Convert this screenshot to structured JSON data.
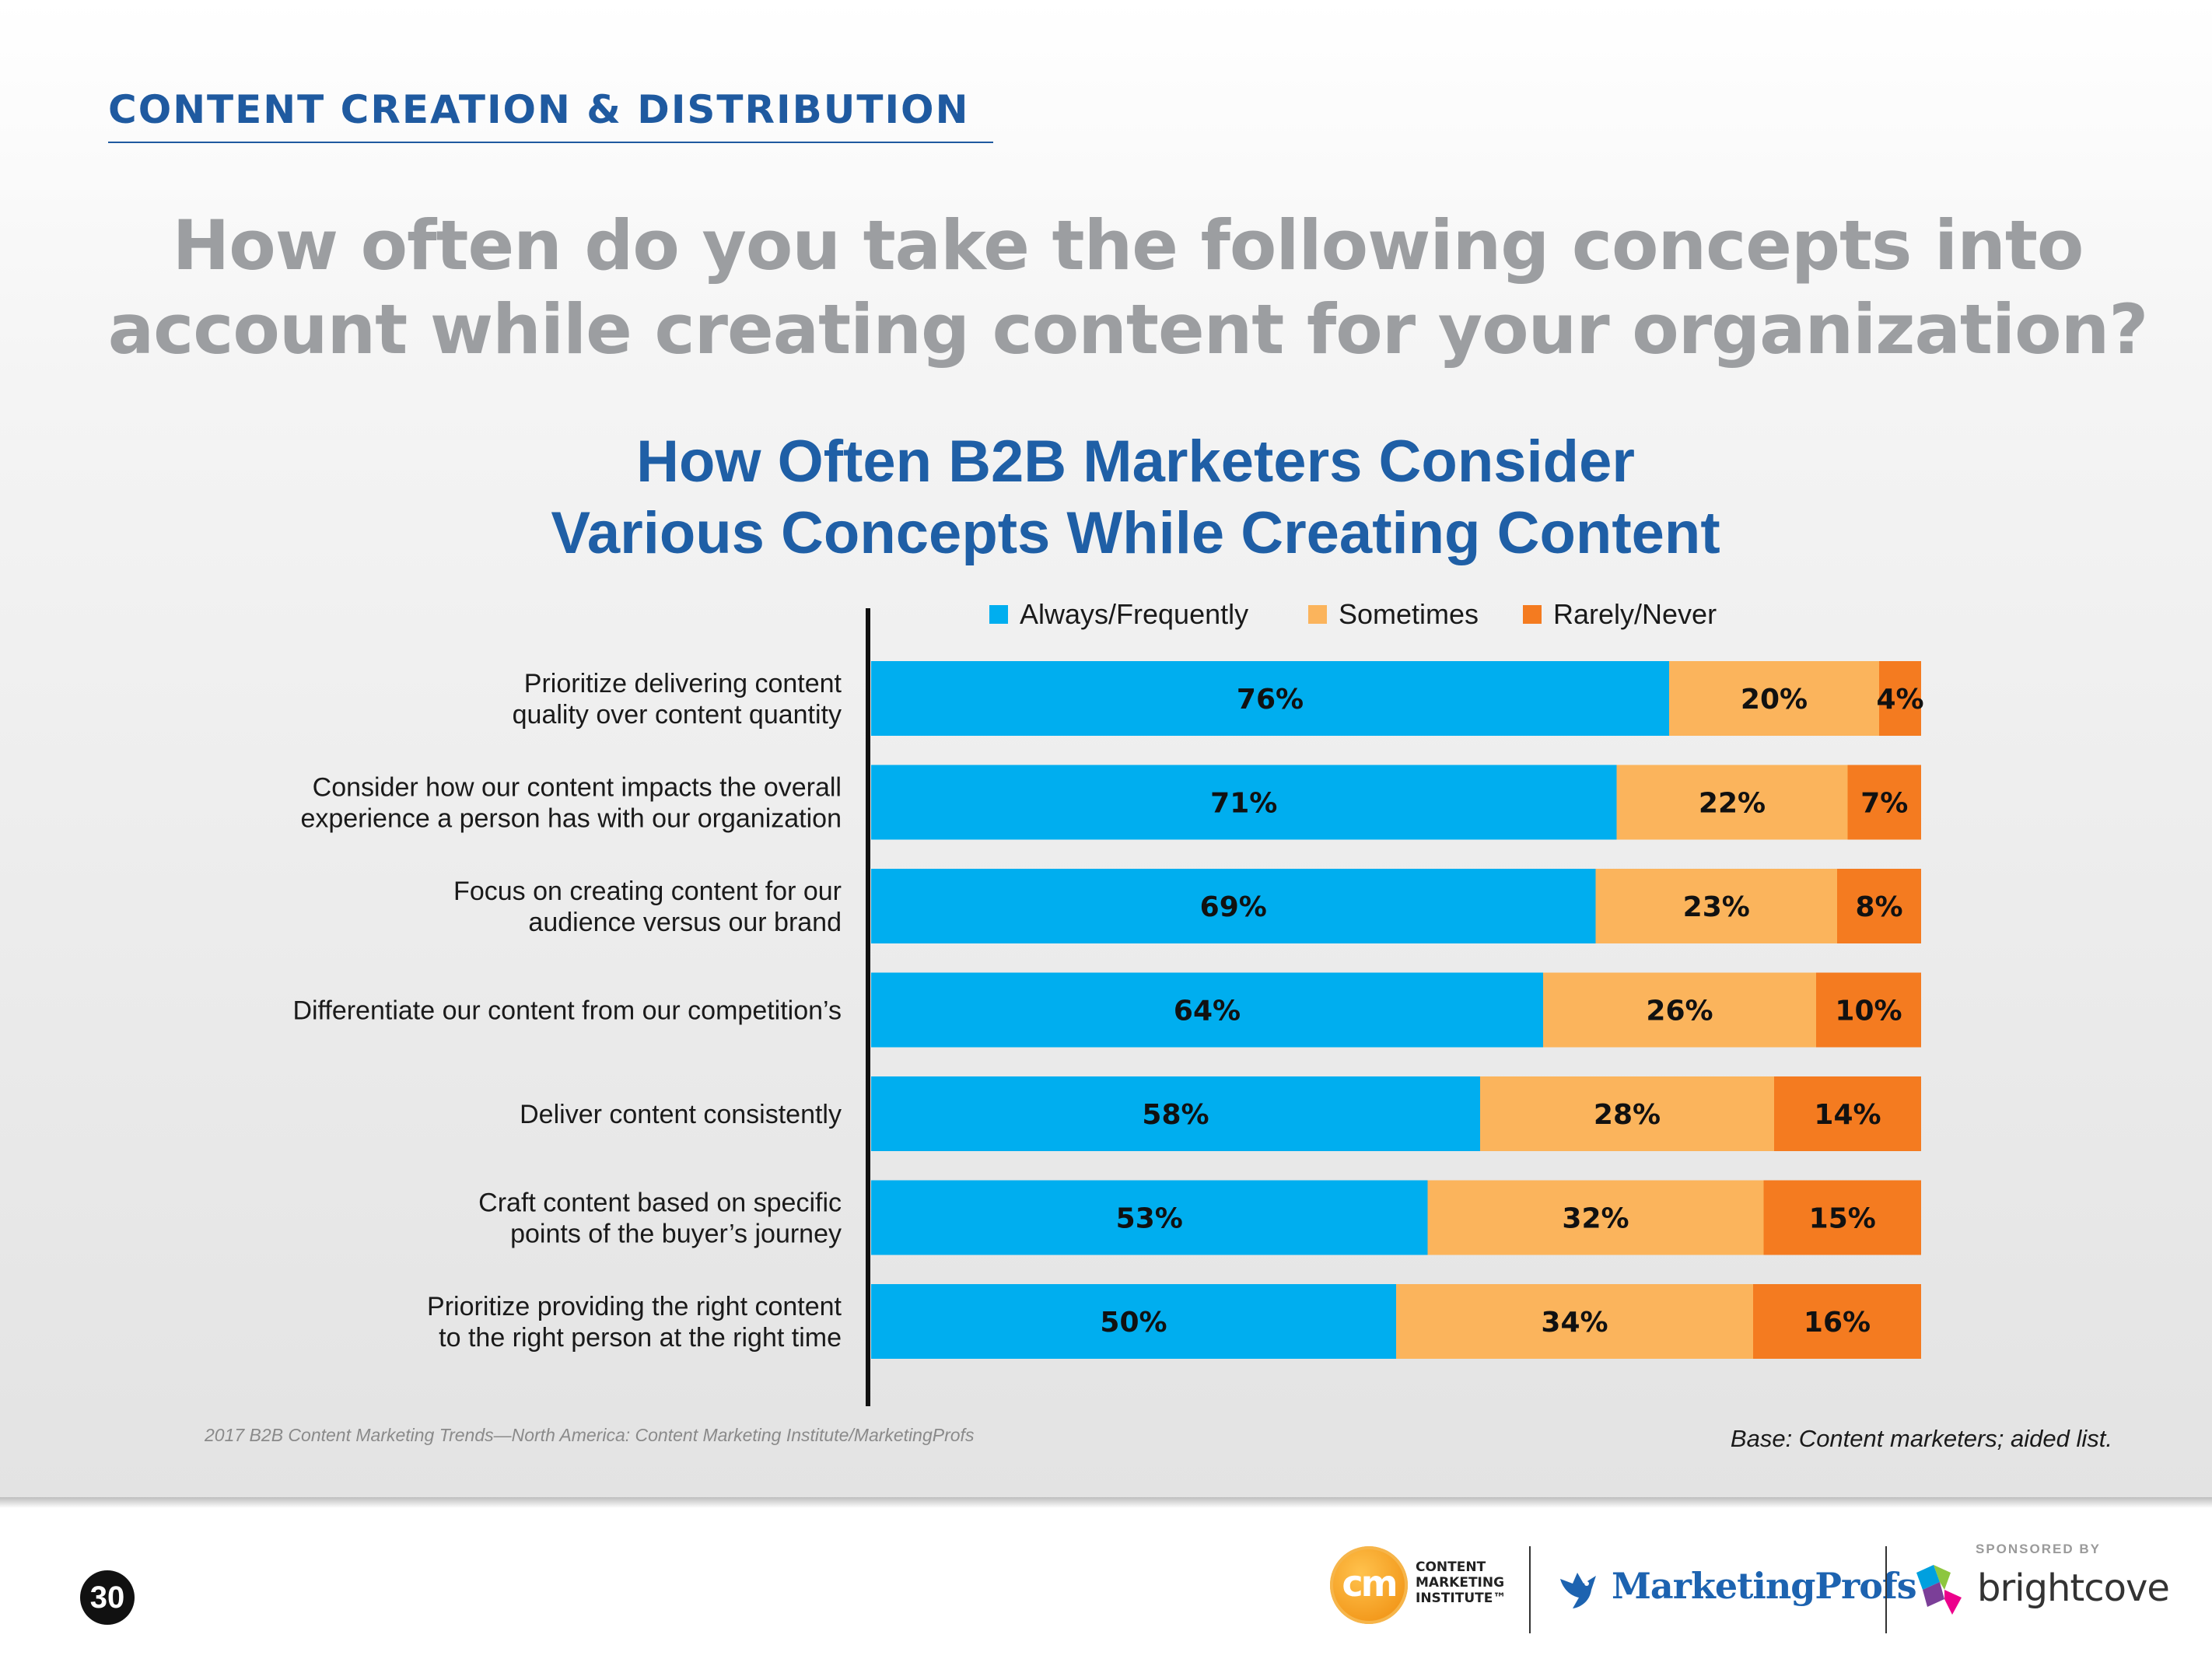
{
  "header": {
    "section_title": "CONTENT CREATION & DISTRIBUTION",
    "question_line1": "How often do you take the following concepts into",
    "question_line2": "account while creating content for your organization?"
  },
  "chart_data": {
    "type": "bar",
    "orientation": "horizontal",
    "stacked": true,
    "title_line1": "How Often B2B Marketers Consider",
    "title_line2": "Various Concepts While Creating Content",
    "legend_position": "top",
    "categories": [
      [
        "Prioritize delivering content",
        "quality over content quantity"
      ],
      [
        "Consider how our content impacts the overall",
        "experience a person has with our organization"
      ],
      [
        "Focus on creating content for our",
        "audience versus our brand"
      ],
      [
        "Differentiate our content from our competition’s"
      ],
      [
        "Deliver content consistently"
      ],
      [
        "Craft content based on specific",
        "points of the buyer’s journey"
      ],
      [
        "Prioritize providing the right content",
        "to the right person at the right time"
      ]
    ],
    "series": [
      {
        "name": "Always/Frequently",
        "color": "#00aeef",
        "values": [
          76,
          71,
          69,
          64,
          58,
          53,
          50
        ],
        "labels": [
          "76%",
          "71%",
          "69%",
          "64%",
          "58%",
          "53%",
          "50%"
        ]
      },
      {
        "name": "Sometimes",
        "color": "#fbb45c",
        "values": [
          20,
          22,
          23,
          26,
          28,
          32,
          34
        ],
        "labels": [
          "20%",
          "22%",
          "23%",
          "26%",
          "28%",
          "32%",
          "34%"
        ]
      },
      {
        "name": "Rarely/Never",
        "color": "#f47b20",
        "values": [
          4,
          7,
          8,
          10,
          14,
          15,
          16
        ],
        "labels": [
          "4%",
          "7%",
          "8%",
          "10%",
          "14%",
          "15%",
          "16%"
        ]
      }
    ],
    "xlim": [
      0,
      100
    ]
  },
  "notes": {
    "source": "2017 B2B Content Marketing Trends—North America: Content Marketing Institute/MarketingProfs",
    "base": "Base: Content marketers; aided list."
  },
  "footer": {
    "page_number": "30",
    "cmi_mark": "cm",
    "cmi_line1": "CONTENT",
    "cmi_line2": "MARKETING",
    "cmi_line3": "INSTITUTE™",
    "marketingprofs": "MarketingProfs",
    "sponsored_by": "SPONSORED BY",
    "brightcove": "brightcove"
  }
}
